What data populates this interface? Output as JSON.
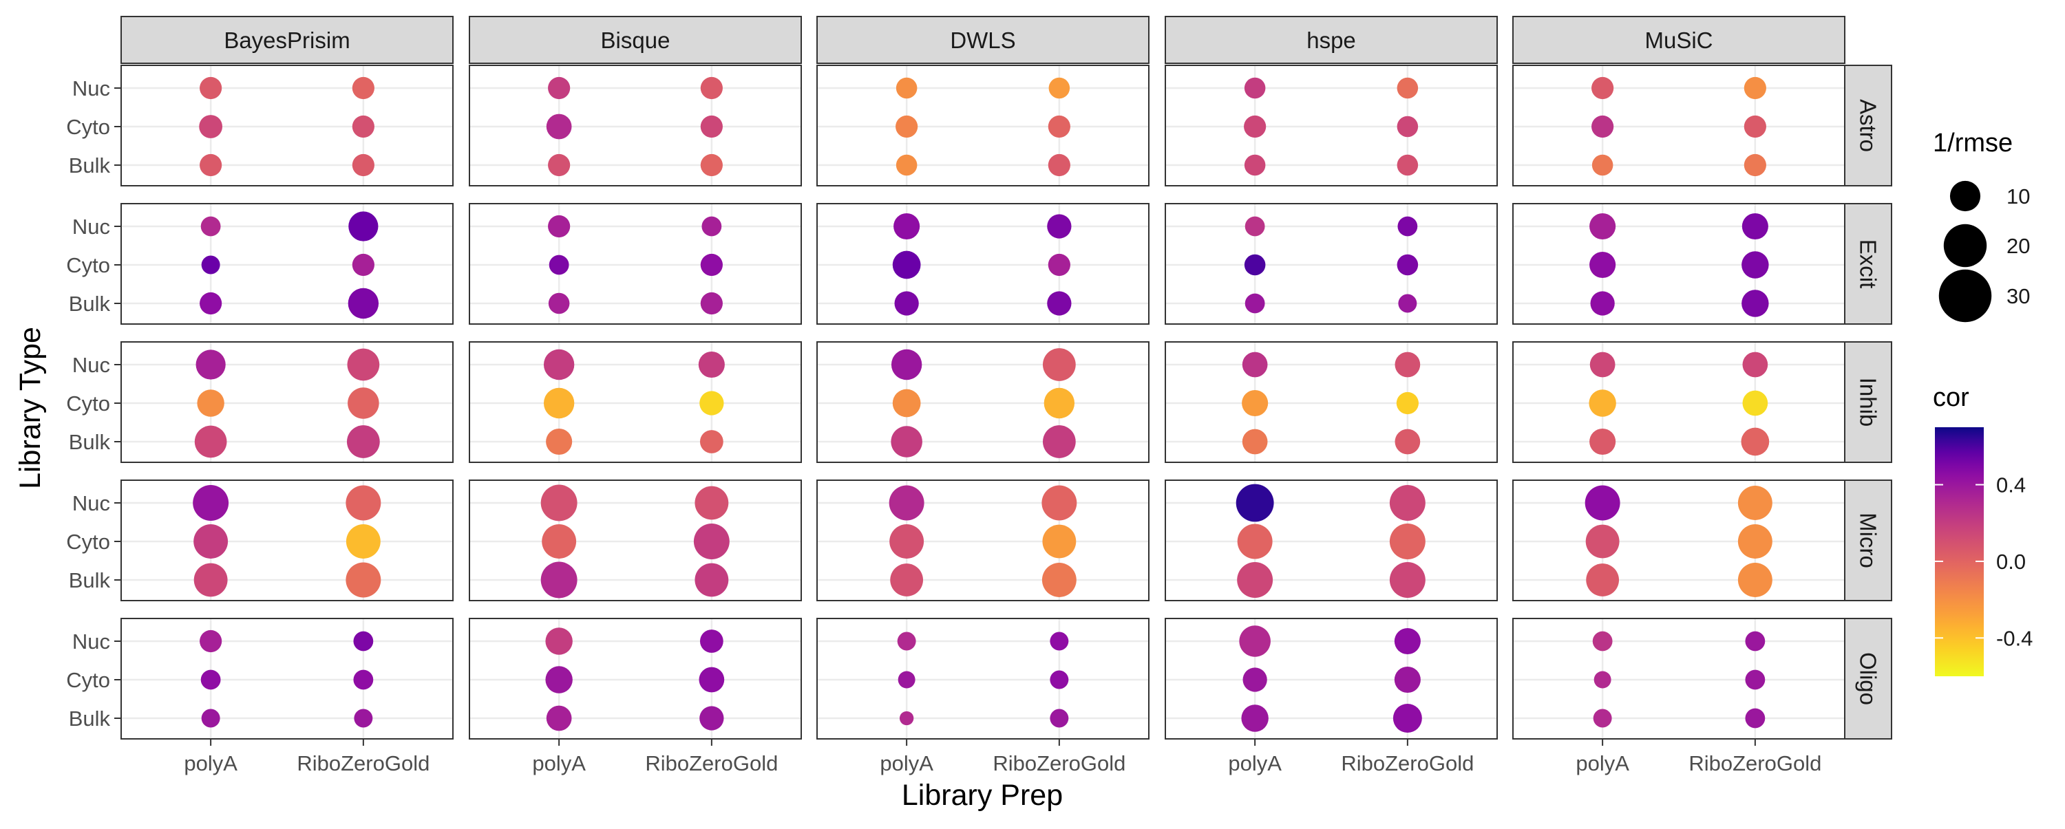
{
  "chart_data": {
    "type": "scatter",
    "xlabel": "Library Prep",
    "ylabel": "Library Type",
    "methods": [
      "BayesPrisim",
      "Bisque",
      "DWLS",
      "hspe",
      "MuSiC"
    ],
    "cell_types": [
      "Astro",
      "Excit",
      "Inhib",
      "Micro",
      "Oligo"
    ],
    "x_categories": [
      "polyA",
      "RiboZeroGold"
    ],
    "y_categories": [
      "Nuc",
      "Cyto",
      "Bulk"
    ],
    "size_legend": {
      "title": "1/rmse",
      "breaks": [
        10,
        20,
        30
      ]
    },
    "color_legend": {
      "title": "cor",
      "breaks": [
        0.4,
        0.0,
        -0.4
      ],
      "range": [
        -0.6,
        0.6
      ],
      "low_color": "#f0f921",
      "mid_color": "#e56b5d",
      "high_color": "#0d0887"
    },
    "grid": true,
    "legend_position": "right",
    "panels": {
      "BayesPrisim": {
        "Astro": [
          [
            [
              0.05,
              5
            ],
            [
              0.0,
              5
            ]
          ],
          [
            [
              0.15,
              5.5
            ],
            [
              0.1,
              5
            ]
          ],
          [
            [
              0.05,
              5
            ],
            [
              0.05,
              5
            ]
          ]
        ],
        "Excit": [
          [
            [
              0.3,
              4
            ],
            [
              0.55,
              9
            ]
          ],
          [
            [
              0.55,
              3.5
            ],
            [
              0.35,
              5
            ]
          ],
          [
            [
              0.45,
              5
            ],
            [
              0.5,
              9.5
            ]
          ]
        ],
        "Inhib": [
          [
            [
              0.35,
              9
            ],
            [
              0.15,
              10.5
            ]
          ],
          [
            [
              -0.2,
              7.5
            ],
            [
              0.0,
              10
            ]
          ],
          [
            [
              0.15,
              10.5
            ],
            [
              0.2,
              11
            ]
          ]
        ],
        "Micro": [
          [
            [
              0.42,
              13
            ],
            [
              0.0,
              12.5
            ]
          ],
          [
            [
              0.2,
              12
            ],
            [
              -0.38,
              12
            ]
          ],
          [
            [
              0.15,
              11.5
            ],
            [
              -0.05,
              12.5
            ]
          ]
        ],
        "Oligo": [
          [
            [
              0.35,
              5
            ],
            [
              0.5,
              4
            ]
          ],
          [
            [
              0.45,
              4
            ],
            [
              0.45,
              4
            ]
          ],
          [
            [
              0.4,
              3.5
            ],
            [
              0.4,
              3.5
            ]
          ]
        ]
      },
      "Bisque": {
        "Astro": [
          [
            [
              0.2,
              5
            ],
            [
              0.05,
              5
            ]
          ],
          [
            [
              0.3,
              6.5
            ],
            [
              0.15,
              5
            ]
          ],
          [
            [
              0.1,
              5
            ],
            [
              0.0,
              5
            ]
          ]
        ],
        "Excit": [
          [
            [
              0.35,
              5
            ],
            [
              0.35,
              4
            ]
          ],
          [
            [
              0.5,
              4
            ],
            [
              0.45,
              5
            ]
          ],
          [
            [
              0.35,
              4.5
            ],
            [
              0.35,
              5
            ]
          ]
        ],
        "Inhib": [
          [
            [
              0.2,
              9.5
            ],
            [
              0.2,
              7
            ]
          ],
          [
            [
              -0.35,
              9.5
            ],
            [
              -0.48,
              6
            ]
          ],
          [
            [
              -0.1,
              7
            ],
            [
              0.0,
              5.5
            ]
          ]
        ],
        "Micro": [
          [
            [
              0.1,
              13.5
            ],
            [
              0.1,
              11.5
            ]
          ],
          [
            [
              0.0,
              12
            ],
            [
              0.2,
              13
            ]
          ],
          [
            [
              0.3,
              13.5
            ],
            [
              0.2,
              11.5
            ]
          ]
        ],
        "Oligo": [
          [
            [
              0.2,
              7.5
            ],
            [
              0.45,
              5.5
            ]
          ],
          [
            [
              0.4,
              7.5
            ],
            [
              0.45,
              6.5
            ]
          ],
          [
            [
              0.35,
              6.5
            ],
            [
              0.4,
              6
            ]
          ]
        ]
      },
      "DWLS": {
        "Astro": [
          [
            [
              -0.2,
              4.5
            ],
            [
              -0.25,
              4.5
            ]
          ],
          [
            [
              -0.15,
              5
            ],
            [
              0.0,
              5
            ]
          ],
          [
            [
              -0.2,
              4.5
            ],
            [
              0.05,
              5
            ]
          ]
        ],
        "Excit": [
          [
            [
              0.45,
              7
            ],
            [
              0.5,
              6
            ]
          ],
          [
            [
              0.55,
              8
            ],
            [
              0.35,
              5
            ]
          ],
          [
            [
              0.5,
              6
            ],
            [
              0.5,
              6
            ]
          ]
        ],
        "Inhib": [
          [
            [
              0.4,
              9.5
            ],
            [
              0.05,
              11
            ]
          ],
          [
            [
              -0.2,
              8
            ],
            [
              -0.35,
              9.5
            ]
          ],
          [
            [
              0.2,
              10
            ],
            [
              0.2,
              11
            ]
          ]
        ],
        "Micro": [
          [
            [
              0.3,
              12.5
            ],
            [
              0.0,
              12.5
            ]
          ],
          [
            [
              0.1,
              12
            ],
            [
              -0.25,
              11.5
            ]
          ],
          [
            [
              0.1,
              11
            ],
            [
              -0.1,
              12
            ]
          ]
        ],
        "Oligo": [
          [
            [
              0.3,
              3.5
            ],
            [
              0.45,
              3.5
            ]
          ],
          [
            [
              0.4,
              3
            ],
            [
              0.45,
              3.5
            ]
          ],
          [
            [
              0.3,
              2
            ],
            [
              0.4,
              3.5
            ]
          ]
        ]
      },
      "hspe": {
        "Astro": [
          [
            [
              0.2,
              4.5
            ],
            [
              -0.05,
              4.5
            ]
          ],
          [
            [
              0.15,
              5
            ],
            [
              0.15,
              4.5
            ]
          ],
          [
            [
              0.15,
              4.5
            ],
            [
              0.1,
              4.5
            ]
          ]
        ],
        "Excit": [
          [
            [
              0.25,
              4
            ],
            [
              0.5,
              4
            ]
          ],
          [
            [
              0.6,
              4.5
            ],
            [
              0.5,
              4.5
            ]
          ],
          [
            [
              0.4,
              4
            ],
            [
              0.4,
              3.5
            ]
          ]
        ],
        "Inhib": [
          [
            [
              0.25,
              6.5
            ],
            [
              0.1,
              6.5
            ]
          ],
          [
            [
              -0.25,
              7
            ],
            [
              -0.45,
              5
            ]
          ],
          [
            [
              -0.1,
              6.5
            ],
            [
              0.05,
              6.5
            ]
          ]
        ],
        "Micro": [
          [
            [
              0.65,
              14.5
            ],
            [
              0.15,
              13
            ]
          ],
          [
            [
              0.0,
              12.5
            ],
            [
              0.0,
              13
            ]
          ],
          [
            [
              0.15,
              13
            ],
            [
              0.15,
              13
            ]
          ]
        ],
        "Oligo": [
          [
            [
              0.3,
              10
            ],
            [
              0.45,
              7
            ]
          ],
          [
            [
              0.4,
              6
            ],
            [
              0.4,
              7
            ]
          ],
          [
            [
              0.4,
              7.5
            ],
            [
              0.45,
              8.5
            ]
          ]
        ]
      },
      "MuSiC": {
        "Astro": [
          [
            [
              0.05,
              5
            ],
            [
              -0.2,
              5
            ]
          ],
          [
            [
              0.25,
              5
            ],
            [
              0.05,
              5
            ]
          ],
          [
            [
              -0.1,
              4.5
            ],
            [
              -0.1,
              5
            ]
          ]
        ],
        "Excit": [
          [
            [
              0.35,
              7
            ],
            [
              0.5,
              7
            ]
          ],
          [
            [
              0.45,
              7
            ],
            [
              0.5,
              7.5
            ]
          ],
          [
            [
              0.45,
              6
            ],
            [
              0.5,
              7.5
            ]
          ]
        ],
        "Inhib": [
          [
            [
              0.15,
              6.5
            ],
            [
              0.15,
              6.5
            ]
          ],
          [
            [
              -0.35,
              7.5
            ],
            [
              -0.5,
              6.5
            ]
          ],
          [
            [
              0.05,
              7
            ],
            [
              0.0,
              8
            ]
          ]
        ],
        "Micro": [
          [
            [
              0.45,
              12.5
            ],
            [
              -0.2,
              12
            ]
          ],
          [
            [
              0.1,
              11.5
            ],
            [
              -0.2,
              12
            ]
          ],
          [
            [
              0.05,
              11
            ],
            [
              -0.2,
              12
            ]
          ]
        ],
        "Oligo": [
          [
            [
              0.25,
              4
            ],
            [
              0.4,
              4
            ]
          ],
          [
            [
              0.3,
              3
            ],
            [
              0.4,
              4
            ]
          ],
          [
            [
              0.3,
              3.5
            ],
            [
              0.4,
              4
            ]
          ]
        ]
      }
    }
  }
}
